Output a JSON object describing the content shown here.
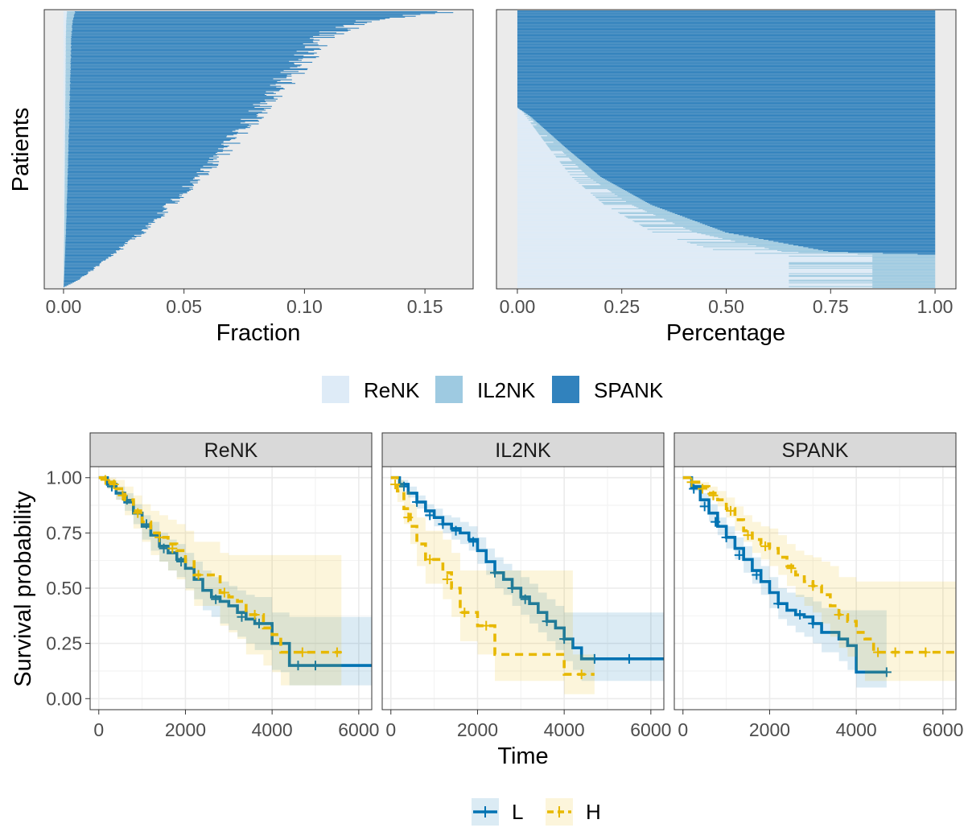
{
  "colors": {
    "ReNK": "#deebf7",
    "IL2NK": "#9ecae1",
    "SPANK": "#3182bd",
    "L": "#0072b2",
    "H": "#e7b800",
    "panel_bg": "#ebebeb",
    "strip_bg": "#d9d9d9"
  },
  "chart_data": [
    {
      "type": "bar",
      "orientation": "horizontal-stacked",
      "panel": "top-left",
      "xlabel": "Fraction",
      "ylabel": "Patients",
      "xlim": [
        -0.008,
        0.17
      ],
      "xticks": [
        "0.00",
        "0.05",
        "0.10",
        "0.15"
      ],
      "xtick_values": [
        0,
        0.05,
        0.1,
        0.15
      ],
      "description_series": [
        "ReNK",
        "IL2NK",
        "SPANK"
      ],
      "n_patients": 300,
      "total_fraction_profile": {
        "quantiles": [
          0,
          0.02,
          0.05,
          0.1,
          0.2,
          0.3,
          0.4,
          0.5,
          0.6,
          0.7,
          0.8,
          0.9,
          0.95,
          0.98,
          1
        ],
        "values": [
          0.0,
          0.005,
          0.01,
          0.018,
          0.033,
          0.045,
          0.057,
          0.068,
          0.078,
          0.088,
          0.098,
          0.107,
          0.12,
          0.14,
          0.165
        ]
      },
      "spank_share": 0.97
    },
    {
      "type": "bar",
      "orientation": "horizontal-stacked",
      "panel": "top-right",
      "xlabel": "Percentage",
      "xlim": [
        -0.05,
        1.05
      ],
      "xticks": [
        "0.00",
        "0.25",
        "0.50",
        "0.75",
        "1.00"
      ],
      "xtick_values": [
        0,
        0.25,
        0.5,
        0.75,
        1.0
      ],
      "n_patients": 300,
      "spank_percentage_profile": {
        "quantiles": [
          0,
          0.12,
          0.13,
          0.2,
          0.3,
          0.4,
          0.5,
          0.58,
          0.62,
          0.65,
          1
        ],
        "values": [
          0.0,
          0.0,
          0.25,
          0.5,
          0.68,
          0.8,
          0.88,
          0.94,
          0.97,
          1.0,
          1.0
        ]
      },
      "legend": {
        "position": "bottom",
        "items": [
          "ReNK",
          "IL2NK",
          "SPANK"
        ]
      }
    },
    {
      "type": "line",
      "kind": "kaplan-meier",
      "facets": [
        "ReNK",
        "IL2NK",
        "SPANK"
      ],
      "xlabel": "Time",
      "ylabel": "Survival probability",
      "xlim": [
        -200,
        6300
      ],
      "ylim": [
        -0.05,
        1.05
      ],
      "xticks": [
        "0",
        "2000",
        "4000",
        "6000"
      ],
      "xtick_values": [
        0,
        2000,
        4000,
        6000
      ],
      "yticks": [
        "0.00",
        "0.25",
        "0.50",
        "0.75",
        "1.00"
      ],
      "ytick_values": [
        0,
        0.25,
        0.5,
        0.75,
        1.0
      ],
      "legend": {
        "position": "bottom",
        "items": [
          "L",
          "H"
        ]
      },
      "panels": [
        {
          "facet": "ReNK",
          "series": [
            {
              "name": "L",
              "x": [
                0,
                200,
                400,
                600,
                800,
                1000,
                1200,
                1400,
                1600,
                1800,
                2000,
                2200,
                2400,
                2600,
                2800,
                3000,
                3200,
                3400,
                3600,
                3800,
                4000,
                4200,
                4400,
                6300
              ],
              "y": [
                1.0,
                0.97,
                0.93,
                0.89,
                0.84,
                0.78,
                0.74,
                0.69,
                0.66,
                0.63,
                0.59,
                0.54,
                0.49,
                0.46,
                0.44,
                0.42,
                0.39,
                0.36,
                0.34,
                0.34,
                0.25,
                0.25,
                0.15,
                0.15
              ],
              "lower": [
                1.0,
                0.95,
                0.9,
                0.85,
                0.79,
                0.72,
                0.67,
                0.62,
                0.58,
                0.55,
                0.5,
                0.45,
                0.4,
                0.37,
                0.34,
                0.31,
                0.28,
                0.25,
                0.22,
                0.22,
                0.13,
                0.12,
                0.06,
                0.06
              ],
              "upper": [
                1.0,
                0.99,
                0.96,
                0.93,
                0.88,
                0.83,
                0.8,
                0.75,
                0.72,
                0.7,
                0.66,
                0.62,
                0.58,
                0.55,
                0.53,
                0.51,
                0.49,
                0.47,
                0.46,
                0.46,
                0.39,
                0.39,
                0.37,
                0.37
              ],
              "censored_x": [
                300,
                650,
                1100,
                1500,
                1900,
                2700,
                3300,
                3700,
                4600,
                5000
              ],
              "censored_y": [
                0.96,
                0.9,
                0.79,
                0.68,
                0.62,
                0.45,
                0.37,
                0.34,
                0.15,
                0.15
              ]
            },
            {
              "name": "H",
              "x": [
                0,
                200,
                400,
                600,
                800,
                1000,
                1200,
                1400,
                1600,
                1800,
                2000,
                2200,
                2400,
                2600,
                2800,
                3000,
                3200,
                3400,
                3600,
                3800,
                4000,
                4200,
                4600,
                5600
              ],
              "y": [
                1.0,
                0.98,
                0.95,
                0.9,
                0.85,
                0.8,
                0.75,
                0.73,
                0.7,
                0.67,
                0.62,
                0.56,
                0.56,
                0.56,
                0.48,
                0.46,
                0.44,
                0.38,
                0.38,
                0.32,
                0.29,
                0.21,
                0.21,
                0.21
              ],
              "lower": [
                1.0,
                0.95,
                0.9,
                0.83,
                0.77,
                0.71,
                0.65,
                0.62,
                0.58,
                0.54,
                0.49,
                0.42,
                0.42,
                0.42,
                0.33,
                0.3,
                0.27,
                0.2,
                0.2,
                0.15,
                0.12,
                0.06,
                0.06,
                0.06
              ],
              "upper": [
                1.0,
                1.0,
                0.99,
                0.96,
                0.92,
                0.88,
                0.85,
                0.83,
                0.81,
                0.79,
                0.76,
                0.71,
                0.71,
                0.71,
                0.66,
                0.65,
                0.65,
                0.65,
                0.65,
                0.65,
                0.65,
                0.65,
                0.65,
                0.65
              ],
              "censored_x": [
                150,
                350,
                550,
                900,
                1400,
                1700,
                2300,
                2900,
                3600,
                4700,
                5500
              ],
              "censored_y": [
                0.99,
                0.97,
                0.92,
                0.84,
                0.73,
                0.68,
                0.56,
                0.48,
                0.38,
                0.21,
                0.21
              ]
            }
          ]
        },
        {
          "facet": "IL2NK",
          "series": [
            {
              "name": "L",
              "x": [
                0,
                200,
                400,
                600,
                800,
                1000,
                1200,
                1400,
                1600,
                1800,
                2000,
                2200,
                2400,
                2600,
                2800,
                3000,
                3200,
                3400,
                3600,
                3800,
                4000,
                4200,
                4400,
                6300
              ],
              "y": [
                1.0,
                0.97,
                0.93,
                0.89,
                0.85,
                0.82,
                0.79,
                0.77,
                0.75,
                0.72,
                0.67,
                0.62,
                0.57,
                0.54,
                0.5,
                0.46,
                0.43,
                0.39,
                0.35,
                0.32,
                0.27,
                0.23,
                0.18,
                0.18
              ],
              "lower": [
                1.0,
                0.96,
                0.91,
                0.86,
                0.82,
                0.78,
                0.75,
                0.72,
                0.7,
                0.67,
                0.61,
                0.56,
                0.5,
                0.47,
                0.42,
                0.38,
                0.34,
                0.3,
                0.26,
                0.22,
                0.17,
                0.13,
                0.08,
                0.08
              ],
              "upper": [
                1.0,
                0.99,
                0.96,
                0.92,
                0.88,
                0.86,
                0.83,
                0.82,
                0.8,
                0.78,
                0.73,
                0.68,
                0.64,
                0.61,
                0.58,
                0.55,
                0.52,
                0.48,
                0.45,
                0.42,
                0.39,
                0.39,
                0.39,
                0.39
              ],
              "censored_x": [
                300,
                600,
                900,
                1200,
                1500,
                1900,
                2400,
                2800,
                3100,
                3600,
                4000,
                4700,
                5500
              ],
              "censored_y": [
                0.96,
                0.89,
                0.83,
                0.79,
                0.76,
                0.71,
                0.57,
                0.5,
                0.45,
                0.35,
                0.27,
                0.18,
                0.18
              ]
            },
            {
              "name": "H",
              "x": [
                0,
                150,
                300,
                450,
                600,
                800,
                1000,
                1200,
                1400,
                1600,
                1800,
                2000,
                2400,
                3000,
                4000,
                4200,
                4700
              ],
              "y": [
                1.0,
                0.94,
                0.86,
                0.78,
                0.7,
                0.63,
                0.63,
                0.57,
                0.5,
                0.39,
                0.39,
                0.33,
                0.2,
                0.2,
                0.11,
                0.11,
                0.11
              ],
              "lower": [
                1.0,
                0.89,
                0.79,
                0.7,
                0.6,
                0.52,
                0.52,
                0.45,
                0.37,
                0.26,
                0.26,
                0.2,
                0.08,
                0.08,
                0.02,
                0.02,
                0.02
              ],
              "upper": [
                1.0,
                0.99,
                0.94,
                0.88,
                0.82,
                0.76,
                0.76,
                0.72,
                0.66,
                0.58,
                0.58,
                0.58,
                0.58,
                0.58,
                0.58,
                0.2,
                0.2
              ],
              "censored_x": [
                100,
                400,
                900,
                1300,
                1700,
                2200,
                4400
              ],
              "censored_y": [
                0.97,
                0.82,
                0.63,
                0.54,
                0.39,
                0.33,
                0.11
              ]
            }
          ]
        },
        {
          "facet": "SPANK",
          "series": [
            {
              "name": "L",
              "x": [
                0,
                200,
                400,
                600,
                800,
                1000,
                1200,
                1400,
                1600,
                1800,
                2000,
                2200,
                2400,
                2600,
                2800,
                3000,
                3200,
                3400,
                3600,
                3800,
                4000,
                4200,
                4700
              ],
              "y": [
                1.0,
                0.96,
                0.9,
                0.84,
                0.78,
                0.73,
                0.68,
                0.63,
                0.58,
                0.53,
                0.48,
                0.43,
                0.4,
                0.38,
                0.37,
                0.34,
                0.3,
                0.3,
                0.27,
                0.24,
                0.12,
                0.12,
                0.12
              ],
              "lower": [
                1.0,
                0.94,
                0.87,
                0.8,
                0.74,
                0.68,
                0.63,
                0.57,
                0.52,
                0.47,
                0.41,
                0.36,
                0.33,
                0.3,
                0.28,
                0.25,
                0.21,
                0.21,
                0.17,
                0.13,
                0.05,
                0.05,
                0.05
              ],
              "upper": [
                1.0,
                0.98,
                0.93,
                0.88,
                0.82,
                0.78,
                0.73,
                0.69,
                0.64,
                0.6,
                0.55,
                0.5,
                0.48,
                0.47,
                0.46,
                0.44,
                0.41,
                0.41,
                0.4,
                0.4,
                0.4,
                0.4,
                0.4
              ],
              "censored_x": [
                250,
                500,
                750,
                1000,
                1300,
                1700,
                2200,
                2700,
                3000,
                4700
              ],
              "censored_y": [
                0.95,
                0.87,
                0.8,
                0.73,
                0.65,
                0.56,
                0.43,
                0.38,
                0.34,
                0.12
              ]
            },
            {
              "name": "H",
              "x": [
                0,
                200,
                400,
                600,
                800,
                1000,
                1200,
                1400,
                1600,
                1800,
                2000,
                2200,
                2400,
                2600,
                2800,
                3000,
                3200,
                3400,
                3600,
                3800,
                4000,
                4200,
                4400,
                6300
              ],
              "y": [
                1.0,
                0.98,
                0.96,
                0.93,
                0.9,
                0.86,
                0.81,
                0.76,
                0.72,
                0.7,
                0.68,
                0.64,
                0.6,
                0.56,
                0.53,
                0.51,
                0.47,
                0.42,
                0.38,
                0.35,
                0.3,
                0.27,
                0.21,
                0.21
              ],
              "lower": [
                1.0,
                0.97,
                0.94,
                0.9,
                0.87,
                0.82,
                0.76,
                0.71,
                0.66,
                0.63,
                0.6,
                0.56,
                0.51,
                0.46,
                0.42,
                0.39,
                0.34,
                0.28,
                0.23,
                0.19,
                0.13,
                0.08,
                0.08,
                0.08
              ],
              "upper": [
                1.0,
                0.99,
                0.98,
                0.96,
                0.94,
                0.91,
                0.87,
                0.83,
                0.8,
                0.78,
                0.77,
                0.74,
                0.7,
                0.67,
                0.65,
                0.64,
                0.62,
                0.6,
                0.55,
                0.55,
                0.53,
                0.53,
                0.53,
                0.53
              ],
              "censored_x": [
                200,
                450,
                700,
                1100,
                1500,
                1900,
                2500,
                3000,
                3600,
                4500,
                4900,
                5600
              ],
              "censored_y": [
                0.98,
                0.95,
                0.92,
                0.85,
                0.74,
                0.69,
                0.59,
                0.51,
                0.38,
                0.21,
                0.21,
                0.21
              ]
            }
          ]
        }
      ]
    }
  ]
}
